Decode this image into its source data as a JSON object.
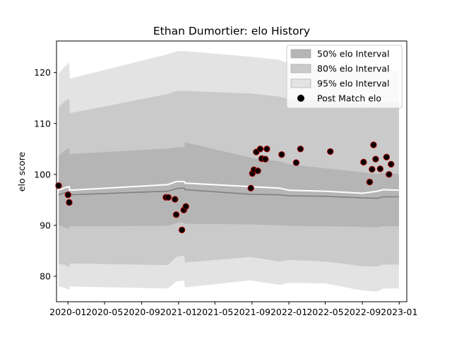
{
  "chart_data": {
    "type": "area",
    "title": "Ethan Dumortier: elo History",
    "xlabel": "",
    "ylabel": "elo score",
    "xlim": [
      "2019-11-24",
      "2023-01-26"
    ],
    "ylim": [
      75,
      126.2
    ],
    "x_ticks": [
      "2020-01",
      "2020-05",
      "2020-09",
      "2021-01",
      "2021-05",
      "2021-09",
      "2022-01",
      "2022-05",
      "2022-09",
      "2023-01"
    ],
    "y_ticks": [
      80,
      90,
      100,
      110,
      120
    ],
    "grid": false,
    "legend": {
      "placement": "top-right",
      "entries": [
        "50% elo Interval",
        "80% elo Interval",
        "95% elo Interval",
        "Post Match elo"
      ]
    },
    "colors": {
      "band_50": "#b5b5b5",
      "band_80": "#cacaca",
      "band_95": "#e3e3e3",
      "mean_line": "#ffffff",
      "median_line": "#808080",
      "marker_fill": "#000000",
      "marker_edge": "#b00000"
    },
    "series": [
      {
        "name": "95% elo Interval",
        "x": [
          "2019-12-01",
          "2019-12-22",
          "2020-01-05",
          "2020-01-07",
          "2020-11-26",
          "2020-12-25",
          "2021-01-05",
          "2021-01-20",
          "2021-01-22",
          "2021-08-27",
          "2021-12-01",
          "2022-01-01",
          "2022-05-01",
          "2022-09-01",
          "2022-10-20",
          "2022-11-10",
          "2022-12-31"
        ],
        "upper": [
          119.8,
          121.2,
          122.0,
          118.8,
          123.6,
          124.2,
          124.2,
          124.2,
          124.2,
          123.1,
          122.5,
          121.8,
          121.5,
          120.3,
          120.1,
          120.8,
          120.4
        ],
        "lower": [
          78.0,
          77.7,
          77.3,
          78.0,
          77.6,
          79.0,
          79.1,
          79.1,
          77.8,
          79.2,
          78.3,
          78.7,
          78.6,
          77.2,
          77.0,
          77.6,
          77.6
        ]
      },
      {
        "name": "80% elo Interval",
        "x": [
          "2019-12-01",
          "2019-12-22",
          "2020-01-05",
          "2020-01-07",
          "2020-11-26",
          "2020-12-25",
          "2021-01-05",
          "2021-01-20",
          "2021-01-22",
          "2021-08-27",
          "2021-12-01",
          "2022-01-01",
          "2022-05-01",
          "2022-09-01",
          "2022-10-20",
          "2022-11-10",
          "2022-12-31"
        ],
        "upper": [
          113.2,
          114.4,
          114.9,
          112.0,
          115.8,
          116.4,
          116.4,
          116.4,
          116.4,
          115.9,
          115.3,
          114.8,
          114.6,
          113.8,
          113.6,
          114.3,
          114.0
        ],
        "lower": [
          82.5,
          82.2,
          81.8,
          82.5,
          82.2,
          83.8,
          84.0,
          84.0,
          82.7,
          83.8,
          82.9,
          83.2,
          82.9,
          82.0,
          81.9,
          82.3,
          82.3
        ]
      },
      {
        "name": "50% elo Interval",
        "x": [
          "2019-12-01",
          "2019-12-22",
          "2020-01-05",
          "2020-01-07",
          "2020-11-26",
          "2020-12-25",
          "2021-01-05",
          "2021-01-20",
          "2021-01-22",
          "2021-08-27",
          "2021-12-01",
          "2022-01-01",
          "2022-05-01",
          "2022-09-01",
          "2022-10-20",
          "2022-11-10",
          "2022-12-31"
        ],
        "upper": [
          103.6,
          104.7,
          105.2,
          104.0,
          105.1,
          105.3,
          105.4,
          105.4,
          106.3,
          103.3,
          102.6,
          102.0,
          101.2,
          100.4,
          100.1,
          100.3,
          100.1
        ],
        "lower": [
          90.0,
          89.6,
          89.3,
          89.8,
          89.9,
          90.4,
          90.6,
          90.6,
          90.3,
          90.2,
          90.0,
          89.9,
          89.8,
          89.7,
          89.6,
          89.8,
          89.8
        ]
      },
      {
        "name": "",
        "role": "mean",
        "x": [
          "2019-12-01",
          "2019-12-22",
          "2020-01-05",
          "2020-01-07",
          "2020-11-26",
          "2020-12-25",
          "2021-01-05",
          "2021-01-20",
          "2021-01-22",
          "2021-08-27",
          "2021-12-01",
          "2022-01-01",
          "2022-05-01",
          "2022-09-01",
          "2022-10-20",
          "2022-11-10",
          "2022-12-31"
        ],
        "values": [
          96.9,
          97.4,
          97.6,
          96.9,
          98.0,
          98.6,
          98.6,
          98.6,
          98.3,
          97.6,
          97.3,
          96.9,
          96.7,
          96.3,
          96.7,
          97.0,
          96.9
        ]
      },
      {
        "name": "",
        "role": "median",
        "x": [
          "2019-12-01",
          "2019-12-22",
          "2020-01-05",
          "2020-01-07",
          "2020-11-26",
          "2020-12-25",
          "2021-01-05",
          "2021-01-20",
          "2021-01-22",
          "2021-08-27",
          "2021-12-01",
          "2022-01-01",
          "2022-05-01",
          "2022-09-01",
          "2022-10-20",
          "2022-11-10",
          "2022-12-31"
        ],
        "values": [
          96.0,
          96.4,
          96.6,
          96.0,
          96.7,
          97.2,
          97.3,
          97.3,
          97.0,
          96.1,
          96.0,
          95.8,
          95.7,
          95.4,
          95.3,
          95.6,
          95.6
        ]
      },
      {
        "name": "Post Match elo",
        "type": "scatter",
        "points": [
          [
            "2019-12-01",
            97.8
          ],
          [
            "2020-01-01",
            96.0
          ],
          [
            "2020-01-05",
            94.5
          ],
          [
            "2020-11-20",
            95.5
          ],
          [
            "2020-11-28",
            95.5
          ],
          [
            "2020-12-20",
            95.1
          ],
          [
            "2020-12-24",
            92.1
          ],
          [
            "2021-01-12",
            89.1
          ],
          [
            "2021-01-18",
            93.0
          ],
          [
            "2021-01-25",
            93.7
          ],
          [
            "2021-08-28",
            97.3
          ],
          [
            "2021-09-02",
            100.2
          ],
          [
            "2021-09-07",
            100.9
          ],
          [
            "2021-09-15",
            104.4
          ],
          [
            "2021-09-20",
            100.7
          ],
          [
            "2021-09-28",
            105.0
          ],
          [
            "2021-10-03",
            103.1
          ],
          [
            "2021-10-15",
            103.0
          ],
          [
            "2021-10-20",
            105.0
          ],
          [
            "2021-12-08",
            103.9
          ],
          [
            "2022-01-25",
            102.3
          ],
          [
            "2022-02-08",
            105.0
          ],
          [
            "2022-05-18",
            104.5
          ],
          [
            "2022-09-05",
            102.4
          ],
          [
            "2022-09-25",
            98.5
          ],
          [
            "2022-10-03",
            101.0
          ],
          [
            "2022-10-08",
            105.8
          ],
          [
            "2022-10-15",
            103.0
          ],
          [
            "2022-10-30",
            101.1
          ],
          [
            "2022-11-20",
            103.4
          ],
          [
            "2022-11-28",
            100.0
          ],
          [
            "2022-12-05",
            102.0
          ]
        ]
      }
    ]
  }
}
